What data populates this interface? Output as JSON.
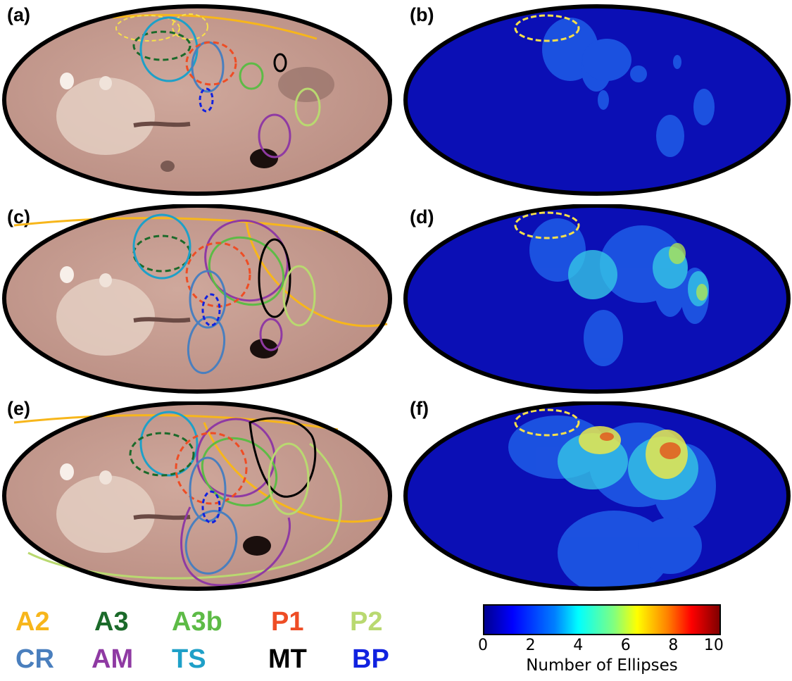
{
  "panels": [
    {
      "id": "a",
      "label": "(a)"
    },
    {
      "id": "b",
      "label": "(b)"
    },
    {
      "id": "c",
      "label": "(c)"
    },
    {
      "id": "d",
      "label": "(d)"
    },
    {
      "id": "e",
      "label": "(e)"
    },
    {
      "id": "f",
      "label": "(f)"
    }
  ],
  "legend": [
    {
      "label": "A2",
      "color": "#f7b61b"
    },
    {
      "label": "A3",
      "color": "#1b6a2a"
    },
    {
      "label": "A3b",
      "color": "#5dbb46"
    },
    {
      "label": "P1",
      "color": "#ee4d25"
    },
    {
      "label": "P2",
      "color": "#b9d970"
    },
    {
      "label": "CR",
      "color": "#4a7fbe"
    },
    {
      "label": "AM",
      "color": "#8f3aa3"
    },
    {
      "label": "TS",
      "color": "#1ea0c8"
    },
    {
      "label": "MT",
      "color": "#000000"
    },
    {
      "label": "BP",
      "color": "#1122e0"
    }
  ],
  "colorbar": {
    "title": "Number of Ellipses",
    "ticks": [
      "0",
      "2",
      "4",
      "6",
      "8",
      "10"
    ],
    "min": 0,
    "max": 10
  }
}
